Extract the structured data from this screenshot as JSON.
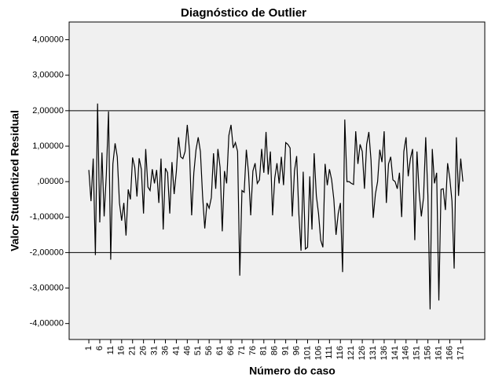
{
  "chart_data": {
    "type": "line",
    "title": "Diagnóstico de Outlier",
    "x_label": "Número do caso",
    "y_label": "Valor Studentized Residual",
    "x": [
      1,
      2,
      3,
      4,
      5,
      6,
      7,
      8,
      9,
      10,
      11,
      12,
      13,
      14,
      15,
      16,
      17,
      18,
      19,
      20,
      21,
      22,
      23,
      24,
      25,
      26,
      27,
      28,
      29,
      30,
      31,
      32,
      33,
      34,
      35,
      36,
      37,
      38,
      39,
      40,
      41,
      42,
      43,
      44,
      45,
      46,
      47,
      48,
      49,
      50,
      51,
      52,
      53,
      54,
      55,
      56,
      57,
      58,
      59,
      60,
      61,
      62,
      63,
      64,
      65,
      66,
      67,
      68,
      69,
      70,
      71,
      72,
      73,
      74,
      75,
      76,
      77,
      78,
      79,
      80,
      81,
      82,
      83,
      84,
      85,
      86,
      87,
      88,
      89,
      90,
      91,
      92,
      93,
      94,
      95,
      96,
      97,
      98,
      99,
      100,
      101,
      102,
      103,
      104,
      105,
      106,
      107,
      108,
      109,
      110,
      111,
      112,
      113,
      114,
      115,
      116,
      117,
      118,
      119,
      120,
      121,
      122,
      123,
      124,
      125,
      126,
      127,
      128,
      129,
      130,
      131,
      132,
      133,
      134,
      135,
      136,
      137,
      138,
      139,
      140,
      141,
      142,
      143,
      144,
      145,
      146,
      147,
      148,
      149,
      150,
      151,
      152,
      153,
      154,
      155,
      156,
      157,
      158,
      159,
      160,
      161,
      162,
      163,
      164,
      165,
      166,
      167,
      168,
      169,
      170,
      171,
      172
    ],
    "series": [
      {
        "name": "Valor Studentized Residual",
        "color": "#000000",
        "values": [
          0.33,
          -0.55,
          0.65,
          -2.07,
          2.2,
          -1.15,
          0.82,
          -0.98,
          0.2,
          1.98,
          -2.2,
          0.5,
          1.08,
          0.7,
          -0.6,
          -1.1,
          -0.6,
          -1.52,
          -0.22,
          -0.5,
          0.68,
          0.4,
          -0.42,
          0.66,
          0.35,
          -0.9,
          0.92,
          -0.15,
          -0.25,
          0.35,
          -0.05,
          0.33,
          -0.6,
          0.65,
          -1.35,
          0.38,
          0.25,
          -0.9,
          0.55,
          -0.35,
          0.28,
          1.25,
          0.7,
          0.65,
          0.85,
          1.6,
          0.88,
          -0.95,
          0.25,
          0.9,
          1.25,
          0.85,
          -0.4,
          -1.32,
          -0.6,
          -0.75,
          -0.45,
          0.8,
          -0.2,
          0.92,
          0.4,
          -1.4,
          0.3,
          -0.05,
          1.3,
          1.6,
          0.95,
          1.1,
          0.85,
          -2.65,
          -0.25,
          -0.3,
          0.9,
          0.25,
          -0.95,
          0.3,
          0.52,
          -0.05,
          0.05,
          0.92,
          0.25,
          1.4,
          0.2,
          0.85,
          -0.95,
          0.1,
          0.52,
          -0.05,
          0.7,
          -0.1,
          1.1,
          1.05,
          0.95,
          -0.98,
          0.3,
          0.72,
          -0.9,
          -1.95,
          0.28,
          -1.9,
          -1.85,
          0.15,
          -1.35,
          0.8,
          -0.4,
          -0.9,
          -1.65,
          -1.85,
          0.5,
          -0.1,
          0.35,
          0.05,
          -0.5,
          -1.5,
          -0.9,
          -0.6,
          -2.55,
          1.75,
          0.0,
          0.0,
          -0.05,
          -0.08,
          1.42,
          0.5,
          1.05,
          0.85,
          -0.2,
          1.05,
          1.4,
          0.6,
          -1.02,
          -0.35,
          0.0,
          0.9,
          0.55,
          1.42,
          -0.6,
          0.5,
          0.7,
          0.05,
          0.0,
          -0.2,
          0.25,
          -1.0,
          0.85,
          1.25,
          0.15,
          0.65,
          0.92,
          -1.65,
          0.85,
          -0.3,
          -0.98,
          -0.45,
          1.25,
          -0.4,
          -3.6,
          0.92,
          -0.05,
          0.25,
          -3.35,
          -0.22,
          -0.2,
          -0.8,
          0.52,
          0.1,
          -0.55,
          -2.45,
          1.25,
          -0.4,
          0.65,
          0.0
        ]
      }
    ],
    "xlim": [
      -8,
      182
    ],
    "xticks": [
      1,
      6,
      11,
      16,
      21,
      26,
      31,
      36,
      41,
      46,
      51,
      56,
      61,
      66,
      71,
      76,
      81,
      86,
      91,
      96,
      101,
      106,
      111,
      116,
      121,
      126,
      131,
      136,
      141,
      146,
      151,
      156,
      161,
      166,
      171
    ],
    "ylim": [
      -4.45,
      4.5
    ],
    "yticks": [
      {
        "value": -4,
        "label": "-4,00000"
      },
      {
        "value": -3,
        "label": "-3,00000"
      },
      {
        "value": -2,
        "label": "-2,00000"
      },
      {
        "value": -1,
        "label": "-1,00000"
      },
      {
        "value": 0,
        "label": ",00000"
      },
      {
        "value": 1,
        "label": "1,00000"
      },
      {
        "value": 2,
        "label": "2,00000"
      },
      {
        "value": 3,
        "label": "3,00000"
      },
      {
        "value": 4,
        "label": "4,00000"
      }
    ],
    "reference_lines": [
      2,
      -2
    ],
    "plot_background": "#f0f0f0"
  }
}
